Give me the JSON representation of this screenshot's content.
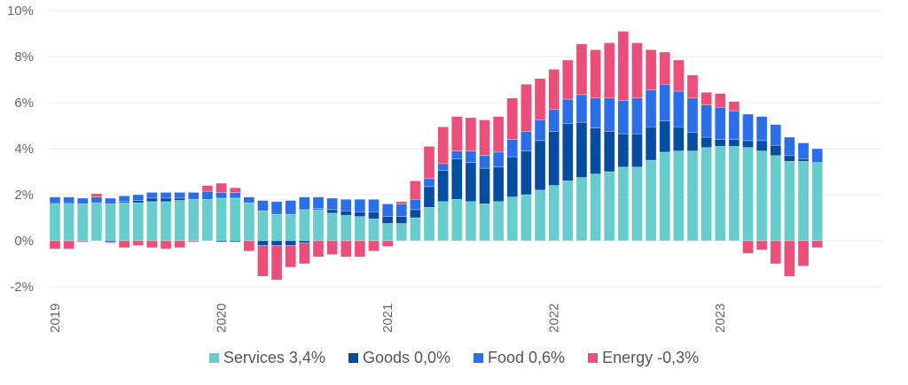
{
  "chart_data": {
    "type": "bar",
    "stacked": true,
    "title": "",
    "xlabel": "",
    "ylabel": "",
    "ylim": [
      -2,
      10
    ],
    "yticks": [
      -2,
      0,
      2,
      4,
      6,
      8,
      10
    ],
    "ytick_labels": [
      "-2%",
      "0%",
      "2%",
      "4%",
      "6%",
      "8%",
      "10%"
    ],
    "grid": true,
    "legend_position": "bottom",
    "x_tick_labels": [
      {
        "label": "2019",
        "index": 0
      },
      {
        "label": "2020",
        "index": 12
      },
      {
        "label": "2021",
        "index": 24
      },
      {
        "label": "2022",
        "index": 36
      },
      {
        "label": "2023",
        "index": 48
      }
    ],
    "categories": [
      "2019-01",
      "2019-02",
      "2019-03",
      "2019-04",
      "2019-05",
      "2019-06",
      "2019-07",
      "2019-08",
      "2019-09",
      "2019-10",
      "2019-11",
      "2019-12",
      "2020-01",
      "2020-02",
      "2020-03",
      "2020-04",
      "2020-05",
      "2020-06",
      "2020-07",
      "2020-08",
      "2020-09",
      "2020-10",
      "2020-11",
      "2020-12",
      "2021-01",
      "2021-02",
      "2021-03",
      "2021-04",
      "2021-05",
      "2021-06",
      "2021-07",
      "2021-08",
      "2021-09",
      "2021-10",
      "2021-11",
      "2021-12",
      "2022-01",
      "2022-02",
      "2022-03",
      "2022-04",
      "2022-05",
      "2022-06",
      "2022-07",
      "2022-08",
      "2022-09",
      "2022-10",
      "2022-11",
      "2022-12",
      "2023-01",
      "2023-02",
      "2023-03",
      "2023-04",
      "2023-05",
      "2023-06",
      "2023-07",
      "2023-08"
    ],
    "series": [
      {
        "name": "Services",
        "color": "#66cccc",
        "legend_label": "Services 3,4%",
        "values": [
          1.6,
          1.6,
          1.6,
          1.65,
          1.6,
          1.65,
          1.65,
          1.7,
          1.7,
          1.75,
          1.8,
          1.8,
          1.85,
          1.85,
          1.65,
          1.3,
          1.15,
          1.15,
          1.35,
          1.35,
          1.2,
          1.1,
          1.05,
          0.95,
          0.75,
          0.75,
          1.0,
          1.45,
          1.7,
          1.8,
          1.7,
          1.6,
          1.7,
          1.9,
          2.0,
          2.2,
          2.4,
          2.6,
          2.75,
          2.9,
          3.0,
          3.2,
          3.2,
          3.5,
          3.85,
          3.9,
          3.9,
          4.05,
          4.1,
          4.1,
          4.05,
          3.9,
          3.7,
          3.45,
          3.45,
          3.4
        ]
      },
      {
        "name": "Goods",
        "color": "#064ca0",
        "legend_label": "Goods 0,0%",
        "values": [
          0.05,
          0.05,
          0.0,
          0.0,
          -0.05,
          0.05,
          0.1,
          0.15,
          0.15,
          0.1,
          0.0,
          0.0,
          -0.05,
          -0.05,
          0.0,
          -0.2,
          -0.2,
          -0.2,
          -0.1,
          0.05,
          0.15,
          0.2,
          0.2,
          0.3,
          0.3,
          0.3,
          0.35,
          0.9,
          1.35,
          1.75,
          1.7,
          1.55,
          1.5,
          1.75,
          1.9,
          2.15,
          2.35,
          2.5,
          2.4,
          2.0,
          1.75,
          1.45,
          1.45,
          1.45,
          1.35,
          1.05,
          0.8,
          0.45,
          0.3,
          0.3,
          0.3,
          0.45,
          0.45,
          0.25,
          0.1,
          0.0
        ]
      },
      {
        "name": "Food",
        "color": "#2a6fe8",
        "legend_label": "Food 0,6%",
        "values": [
          0.25,
          0.25,
          0.25,
          0.25,
          0.25,
          0.25,
          0.25,
          0.25,
          0.25,
          0.25,
          0.3,
          0.35,
          0.25,
          0.25,
          0.25,
          0.45,
          0.55,
          0.6,
          0.55,
          0.5,
          0.5,
          0.5,
          0.55,
          0.55,
          0.55,
          0.55,
          0.45,
          0.35,
          0.3,
          0.35,
          0.5,
          0.55,
          0.65,
          0.75,
          0.85,
          0.9,
          0.95,
          1.05,
          1.2,
          1.3,
          1.45,
          1.45,
          1.55,
          1.6,
          1.6,
          1.55,
          1.5,
          1.4,
          1.4,
          1.25,
          1.15,
          1.05,
          0.9,
          0.8,
          0.7,
          0.6
        ]
      },
      {
        "name": "Energy",
        "color": "#ea4f7a",
        "legend_label": "Energy -0,3%",
        "values": [
          -0.35,
          -0.35,
          -0.05,
          0.15,
          -0.05,
          -0.3,
          -0.2,
          -0.3,
          -0.35,
          -0.3,
          -0.05,
          0.25,
          0.4,
          0.2,
          -0.45,
          -1.35,
          -1.5,
          -0.95,
          -0.9,
          -0.7,
          -0.6,
          -0.7,
          -0.7,
          -0.45,
          -0.25,
          0.1,
          0.8,
          1.4,
          1.6,
          1.5,
          1.45,
          1.55,
          1.55,
          1.8,
          2.05,
          1.8,
          1.75,
          1.7,
          2.2,
          2.1,
          2.4,
          3.0,
          2.4,
          1.75,
          1.4,
          1.35,
          1.0,
          0.55,
          0.6,
          0.4,
          -0.55,
          -0.4,
          -1.0,
          -1.55,
          -1.1,
          -0.3
        ]
      }
    ]
  }
}
